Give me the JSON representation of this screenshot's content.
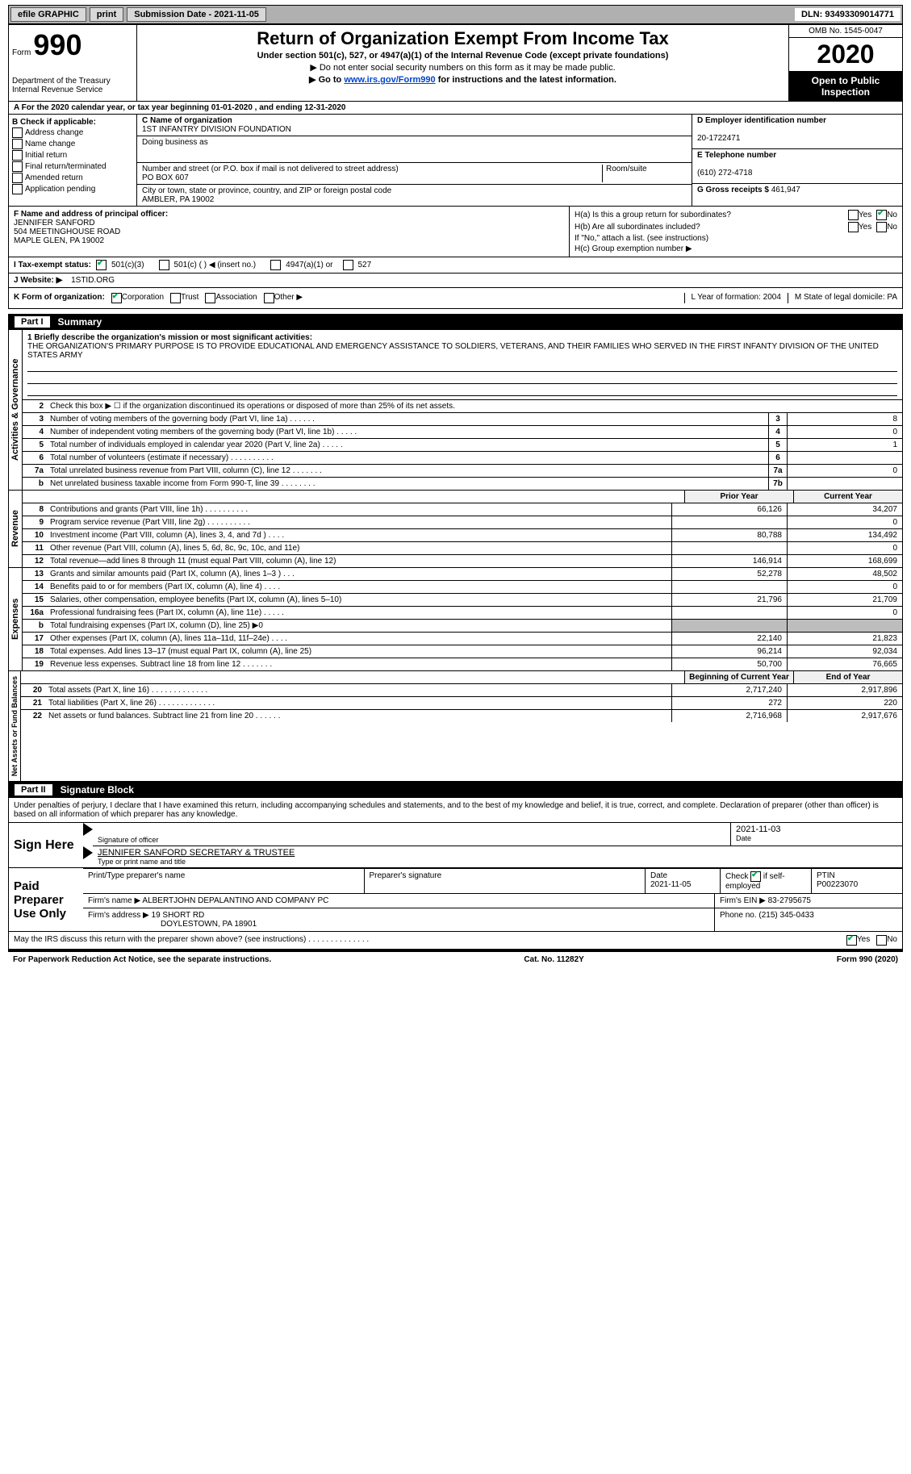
{
  "topbar": {
    "efile": "efile GRAPHIC",
    "print": "print",
    "submission": "Submission Date - 2021-11-05",
    "dln": "DLN: 93493309014771"
  },
  "header": {
    "form_word": "Form",
    "form_num": "990",
    "dept": "Department of the Treasury\nInternal Revenue Service",
    "title": "Return of Organization Exempt From Income Tax",
    "sub1": "Under section 501(c), 527, or 4947(a)(1) of the Internal Revenue Code (except private foundations)",
    "sub2": "▶ Do not enter social security numbers on this form as it may be made public.",
    "sub3_pre": "▶ Go to ",
    "sub3_link": "www.irs.gov/Form990",
    "sub3_post": " for instructions and the latest information.",
    "omb": "OMB No. 1545-0047",
    "year": "2020",
    "inspection": "Open to Public Inspection"
  },
  "line_a": "For the 2020 calendar year, or tax year beginning 01-01-2020     , and ending 12-31-2020",
  "section_b": {
    "title": "B Check if applicable:",
    "items": [
      "Address change",
      "Name change",
      "Initial return",
      "Final return/terminated",
      "Amended return",
      "Application pending"
    ]
  },
  "section_c": {
    "label_name": "C Name of organization",
    "org_name": "1ST INFANTRY DIVISION FOUNDATION",
    "dba_label": "Doing business as",
    "dba": "",
    "street_label": "Number and street (or P.O. box if mail is not delivered to street address)",
    "street": "PO BOX 607",
    "room_label": "Room/suite",
    "city_label": "City or town, state or province, country, and ZIP or foreign postal code",
    "city": "AMBLER, PA   19002"
  },
  "section_d": {
    "label": "D Employer identification number",
    "ein": "20-1722471",
    "tel_label": "E Telephone number",
    "tel": "(610) 272-4718",
    "gross_label": "G Gross receipts $",
    "gross": "461,947"
  },
  "section_f": {
    "label": "F Name and address of principal officer:",
    "name": "JENNIFER SANFORD",
    "addr1": "504 MEETINGHOUSE ROAD",
    "addr2": "MAPLE GLEN, PA   19002"
  },
  "section_h": {
    "ha": "H(a)  Is this a group return for subordinates?",
    "hb": "H(b)  Are all subordinates included?",
    "hb_note": "If \"No,\" attach a list. (see instructions)",
    "hc": "H(c)  Group exemption number ▶",
    "yes": "Yes",
    "no": "No"
  },
  "tax_exempt": {
    "i_label": "I    Tax-exempt status:",
    "c3": "501(c)(3)",
    "c_blank": "501(c) (    ) ◀ (insert no.)",
    "a4947": "4947(a)(1) or",
    "s527": "527"
  },
  "website": {
    "j_label": "J   Website: ▶",
    "url": "1STID.ORG"
  },
  "k_row": {
    "label": "K Form of organization:",
    "corp": "Corporation",
    "trust": "Trust",
    "assoc": "Association",
    "other": "Other ▶",
    "l": "L Year of formation: 2004",
    "m": "M State of legal domicile: PA"
  },
  "part1": {
    "num": "Part I",
    "title": "Summary",
    "governance_label": "Activities & Governance",
    "revenue_label": "Revenue",
    "expenses_label": "Expenses",
    "net_label": "Net Assets or Fund Balances",
    "mission_label": "1  Briefly describe the organization's mission or most significant activities:",
    "mission": "THE ORGANIZATION'S PRIMARY PURPOSE IS TO PROVIDE EDUCATIONAL AND EMERGENCY ASSISTANCE TO SOLDIERS, VETERANS, AND THEIR FAMILIES WHO SERVED IN THE FIRST INFANTY DIVISION OF THE UNITED STATES ARMY",
    "line2": "Check this box ▶ ☐  if the organization discontinued its operations or disposed of more than 25% of its net assets.",
    "prior_hdr": "Prior Year",
    "current_hdr": "Current Year",
    "begin_hdr": "Beginning of Current Year",
    "end_hdr": "End of Year",
    "rows_a": [
      {
        "n": "3",
        "d": "Number of voting members of the governing body (Part VI, line 1a)   .    .    .    .    .    .",
        "nb": "3",
        "v": "8"
      },
      {
        "n": "4",
        "d": "Number of independent voting members of the governing body (Part VI, line 1b)   .    .    .    .    .",
        "nb": "4",
        "v": "0"
      },
      {
        "n": "5",
        "d": "Total number of individuals employed in calendar year 2020 (Part V, line 2a)   .    .    .    .    .",
        "nb": "5",
        "v": "1"
      },
      {
        "n": "6",
        "d": "Total number of volunteers (estimate if necessary)   .    .    .    .    .    .    .    .    .    .",
        "nb": "6",
        "v": ""
      },
      {
        "n": "7a",
        "d": "Total unrelated business revenue from Part VIII, column (C), line 12   .    .    .    .    .    .    .",
        "nb": "7a",
        "v": "0"
      },
      {
        "n": "b",
        "d": "Net unrelated business taxable income from Form 990-T, line 39   .    .    .    .    .    .    .    .",
        "nb": "7b",
        "v": ""
      }
    ],
    "rows_rev": [
      {
        "n": "8",
        "d": "Contributions and grants (Part VIII, line 1h)   .    .    .    .    .    .    .    .    .    .",
        "p": "66,126",
        "c": "34,207"
      },
      {
        "n": "9",
        "d": "Program service revenue (Part VIII, line 2g)   .    .    .    .    .    .    .    .    .    .",
        "p": "",
        "c": "0"
      },
      {
        "n": "10",
        "d": "Investment income (Part VIII, column (A), lines 3, 4, and 7d )   .    .    .    .",
        "p": "80,788",
        "c": "134,492"
      },
      {
        "n": "11",
        "d": "Other revenue (Part VIII, column (A), lines 5, 6d, 8c, 9c, 10c, and 11e)",
        "p": "",
        "c": "0"
      },
      {
        "n": "12",
        "d": "Total revenue—add lines 8 through 11 (must equal Part VIII, column (A), line 12)",
        "p": "146,914",
        "c": "168,699"
      }
    ],
    "rows_exp": [
      {
        "n": "13",
        "d": "Grants and similar amounts paid (Part IX, column (A), lines 1–3 )   .    .    .",
        "p": "52,278",
        "c": "48,502"
      },
      {
        "n": "14",
        "d": "Benefits paid to or for members (Part IX, column (A), line 4)   .    .    .    .",
        "p": "",
        "c": "0"
      },
      {
        "n": "15",
        "d": "Salaries, other compensation, employee benefits (Part IX, column (A), lines 5–10)",
        "p": "21,796",
        "c": "21,709"
      },
      {
        "n": "16a",
        "d": "Professional fundraising fees (Part IX, column (A), line 11e)   .    .    .    .    .",
        "p": "",
        "c": "0"
      },
      {
        "n": "b",
        "d": "Total fundraising expenses (Part IX, column (D), line 25) ▶0",
        "p": "__shade__",
        "c": "__shade__"
      },
      {
        "n": "17",
        "d": "Other expenses (Part IX, column (A), lines 11a–11d, 11f–24e)   .    .    .    .",
        "p": "22,140",
        "c": "21,823"
      },
      {
        "n": "18",
        "d": "Total expenses. Add lines 13–17 (must equal Part IX, column (A), line 25)",
        "p": "96,214",
        "c": "92,034"
      },
      {
        "n": "19",
        "d": "Revenue less expenses. Subtract line 18 from line 12   .    .    .    .    .    .    .",
        "p": "50,700",
        "c": "76,665"
      }
    ],
    "rows_net": [
      {
        "n": "20",
        "d": "Total assets (Part X, line 16)   .    .    .    .    .    .    .    .    .    .    .    .    .",
        "p": "2,717,240",
        "c": "2,917,896"
      },
      {
        "n": "21",
        "d": "Total liabilities (Part X, line 26)   .    .    .    .    .    .    .    .    .    .    .    .    .",
        "p": "272",
        "c": "220"
      },
      {
        "n": "22",
        "d": "Net assets or fund balances. Subtract line 21 from line 20   .    .    .    .    .    .",
        "p": "2,716,968",
        "c": "2,917,676"
      }
    ]
  },
  "part2": {
    "num": "Part II",
    "title": "Signature Block",
    "declaration": "Under penalties of perjury, I declare that I have examined this return, including accompanying schedules and statements, and to the best of my knowledge and belief, it is true, correct, and complete. Declaration of preparer (other than officer) is based on all information of which preparer has any knowledge.",
    "sign_here": "Sign Here",
    "sig_officer": "Signature of officer",
    "sig_date": "Date",
    "sig_date_val": "2021-11-03",
    "officer_name": "JENNIFER SANFORD  SECRETARY & TRUSTEE",
    "type_name": "Type or print name and title",
    "paid_prep": "Paid Preparer Use Only",
    "prep_name_label": "Print/Type preparer's name",
    "prep_sig_label": "Preparer's signature",
    "prep_date_label": "Date",
    "prep_date": "2021-11-05",
    "check_if": "Check ☑ if self-employed",
    "ptin_label": "PTIN",
    "ptin": "P00223070",
    "firm_name_label": "Firm's name     ▶",
    "firm_name": "ALBERTJOHN DEPALANTINO AND COMPANY PC",
    "firm_ein_label": "Firm's EIN ▶",
    "firm_ein": "83-2795675",
    "firm_addr_label": "Firm's address ▶",
    "firm_addr1": "19 SHORT RD",
    "firm_addr2": "DOYLESTOWN, PA   18901",
    "phone_label": "Phone no.",
    "phone": "(215) 345-0433",
    "discuss": "May the IRS discuss this return with the preparer shown above? (see instructions)    .    .    .    .    .    .    .    .    .    .    .    .    .    .",
    "yes": "Yes",
    "no": "No"
  },
  "footer": {
    "pra": "For Paperwork Reduction Act Notice, see the separate instructions.",
    "cat": "Cat. No. 11282Y",
    "form": "Form 990 (2020)"
  },
  "colors": {
    "link": "#0044cc",
    "check": "#0a5"
  }
}
